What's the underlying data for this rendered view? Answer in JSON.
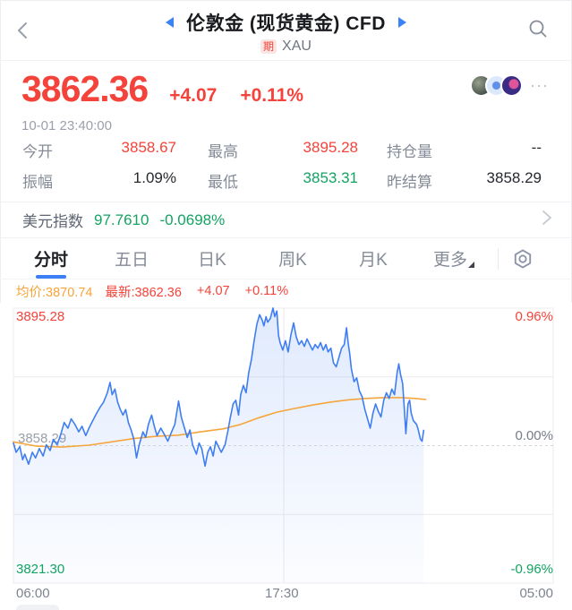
{
  "header": {
    "title": "伦敦金 (现货黄金) CFD",
    "badge": "期",
    "symbol": "XAU",
    "icons": {
      "back": "chevron-left-icon",
      "prev": "triangle-left-icon",
      "next": "triangle-right-icon",
      "search": "magnifier-icon"
    }
  },
  "quote": {
    "price": "3862.36",
    "change": "+4.07",
    "change_pct": "+0.11%",
    "timestamp": "10-01 23:40:00",
    "more_icon": "···"
  },
  "stats": {
    "rows": [
      [
        {
          "label": "今开",
          "value": "3858.67"
        },
        {
          "label": "最高",
          "value": "3895.28"
        },
        {
          "label": "持仓量",
          "value": "--"
        }
      ],
      [
        {
          "label": "振幅",
          "value": "1.09%"
        },
        {
          "label": "最低",
          "value": "3853.31"
        },
        {
          "label": "昨结算",
          "value": "3858.29"
        }
      ]
    ]
  },
  "usd_index": {
    "label": "美元指数",
    "value": "97.7610",
    "change": "-0.0698%"
  },
  "tabs": {
    "items": [
      "分时",
      "五日",
      "日K",
      "周K",
      "月K",
      "更多"
    ],
    "active_index": 0,
    "settings_icon": "hex-nut-gear-icon"
  },
  "legend": {
    "avg": "均价:3870.74",
    "latest": "最新:3862.36",
    "change": "+4.07",
    "change_pct": "+0.11%"
  },
  "chart_data": {
    "type": "line",
    "title": "分时 (minute) chart, London Gold spot CFD",
    "ylim": [
      3821.3,
      3895.28
    ],
    "baseline": 3858.29,
    "y_axis": {
      "top": {
        "price": "3895.28",
        "pct": "0.96%"
      },
      "mid": {
        "price": "3858.29",
        "pct": "0.00%"
      },
      "bottom": {
        "price": "3821.30",
        "pct": "-0.96%"
      }
    },
    "x_ticks": [
      "06:00",
      "17:30",
      "05:00"
    ],
    "x_gridline_frac": 0.501,
    "session_end_frac": 0.76,
    "grid": true,
    "colors": {
      "price_line": "#3f7ef2",
      "avg_line": "#f6a53c",
      "fill_top": "rgba(63,126,242,0.16)",
      "fill_bottom": "rgba(63,126,242,0.02)"
    },
    "series": [
      {
        "name": "price",
        "points": [
          [
            0.0,
            3859.0
          ],
          [
            0.005,
            3856.5
          ],
          [
            0.012,
            3858.0
          ],
          [
            0.017,
            3854.5
          ],
          [
            0.021,
            3856.0
          ],
          [
            0.028,
            3853.3
          ],
          [
            0.035,
            3856.5
          ],
          [
            0.041,
            3855.0
          ],
          [
            0.048,
            3857.5
          ],
          [
            0.055,
            3855.5
          ],
          [
            0.061,
            3858.5
          ],
          [
            0.068,
            3857.0
          ],
          [
            0.074,
            3860.0
          ],
          [
            0.081,
            3858.5
          ],
          [
            0.088,
            3861.5
          ],
          [
            0.094,
            3864.5
          ],
          [
            0.101,
            3863.0
          ],
          [
            0.107,
            3865.5
          ],
          [
            0.114,
            3864.0
          ],
          [
            0.121,
            3862.0
          ],
          [
            0.127,
            3863.5
          ],
          [
            0.134,
            3861.0
          ],
          [
            0.14,
            3863.0
          ],
          [
            0.147,
            3865.0
          ],
          [
            0.154,
            3867.0
          ],
          [
            0.16,
            3868.5
          ],
          [
            0.167,
            3870.0
          ],
          [
            0.174,
            3872.5
          ],
          [
            0.179,
            3875.3
          ],
          [
            0.183,
            3872.0
          ],
          [
            0.188,
            3873.5
          ],
          [
            0.193,
            3870.0
          ],
          [
            0.198,
            3868.0
          ],
          [
            0.203,
            3866.5
          ],
          [
            0.208,
            3868.0
          ],
          [
            0.213,
            3864.5
          ],
          [
            0.218,
            3862.5
          ],
          [
            0.223,
            3860.0
          ],
          [
            0.228,
            3855.0
          ],
          [
            0.233,
            3858.5
          ],
          [
            0.24,
            3862.0
          ],
          [
            0.245,
            3860.5
          ],
          [
            0.25,
            3864.0
          ],
          [
            0.256,
            3866.5
          ],
          [
            0.261,
            3863.5
          ],
          [
            0.266,
            3861.0
          ],
          [
            0.273,
            3863.0
          ],
          [
            0.279,
            3861.5
          ],
          [
            0.286,
            3859.5
          ],
          [
            0.293,
            3862.0
          ],
          [
            0.299,
            3864.0
          ],
          [
            0.306,
            3870.3
          ],
          [
            0.311,
            3866.0
          ],
          [
            0.316,
            3863.5
          ],
          [
            0.322,
            3860.5
          ],
          [
            0.327,
            3862.5
          ],
          [
            0.332,
            3858.5
          ],
          [
            0.339,
            3856.0
          ],
          [
            0.344,
            3859.0
          ],
          [
            0.349,
            3857.5
          ],
          [
            0.355,
            3852.8
          ],
          [
            0.36,
            3856.5
          ],
          [
            0.365,
            3858.0
          ],
          [
            0.37,
            3855.5
          ],
          [
            0.375,
            3859.5
          ],
          [
            0.38,
            3858.0
          ],
          [
            0.385,
            3856.5
          ],
          [
            0.392,
            3858.5
          ],
          [
            0.397,
            3862.0
          ],
          [
            0.402,
            3866.0
          ],
          [
            0.407,
            3869.5
          ],
          [
            0.412,
            3870.5
          ],
          [
            0.417,
            3866.5
          ],
          [
            0.421,
            3872.0
          ],
          [
            0.426,
            3874.5
          ],
          [
            0.431,
            3872.5
          ],
          [
            0.436,
            3878.0
          ],
          [
            0.441,
            3881.5
          ],
          [
            0.446,
            3886.5
          ],
          [
            0.451,
            3891.0
          ],
          [
            0.456,
            3893.5
          ],
          [
            0.461,
            3892.0
          ],
          [
            0.464,
            3890.5
          ],
          [
            0.468,
            3893.0
          ],
          [
            0.471,
            3891.5
          ],
          [
            0.476,
            3892.5
          ],
          [
            0.481,
            3895.3
          ],
          [
            0.484,
            3893.0
          ],
          [
            0.488,
            3894.5
          ],
          [
            0.491,
            3888.0
          ],
          [
            0.494,
            3886.0
          ],
          [
            0.499,
            3884.0
          ],
          [
            0.504,
            3886.5
          ],
          [
            0.509,
            3883.5
          ],
          [
            0.514,
            3888.0
          ],
          [
            0.519,
            3891.3
          ],
          [
            0.524,
            3887.5
          ],
          [
            0.529,
            3885.5
          ],
          [
            0.534,
            3886.5
          ],
          [
            0.539,
            3885.0
          ],
          [
            0.544,
            3887.0
          ],
          [
            0.549,
            3885.5
          ],
          [
            0.554,
            3884.0
          ],
          [
            0.559,
            3885.5
          ],
          [
            0.564,
            3884.5
          ],
          [
            0.569,
            3886.0
          ],
          [
            0.574,
            3884.0
          ],
          [
            0.579,
            3885.5
          ],
          [
            0.583,
            3883.5
          ],
          [
            0.588,
            3884.5
          ],
          [
            0.593,
            3880.5
          ],
          [
            0.598,
            3879.5
          ],
          [
            0.603,
            3882.0
          ],
          [
            0.608,
            3884.5
          ],
          [
            0.613,
            3885.5
          ],
          [
            0.617,
            3890.0
          ],
          [
            0.62,
            3886.0
          ],
          [
            0.623,
            3883.0
          ],
          [
            0.626,
            3879.0
          ],
          [
            0.631,
            3875.5
          ],
          [
            0.636,
            3876.5
          ],
          [
            0.641,
            3873.0
          ],
          [
            0.646,
            3871.5
          ],
          [
            0.651,
            3868.0
          ],
          [
            0.656,
            3865.5
          ],
          [
            0.661,
            3863.0
          ],
          [
            0.666,
            3867.0
          ],
          [
            0.671,
            3869.5
          ],
          [
            0.676,
            3867.5
          ],
          [
            0.681,
            3866.0
          ],
          [
            0.686,
            3870.5
          ],
          [
            0.691,
            3872.5
          ],
          [
            0.696,
            3871.0
          ],
          [
            0.701,
            3873.5
          ],
          [
            0.706,
            3872.0
          ],
          [
            0.711,
            3878.0
          ],
          [
            0.714,
            3880.3
          ],
          [
            0.717,
            3877.5
          ],
          [
            0.721,
            3875.0
          ],
          [
            0.724,
            3868.5
          ],
          [
            0.727,
            3861.5
          ],
          [
            0.731,
            3869.5
          ],
          [
            0.734,
            3870.5
          ],
          [
            0.737,
            3867.0
          ],
          [
            0.741,
            3865.0
          ],
          [
            0.744,
            3864.5
          ],
          [
            0.747,
            3864.0
          ],
          [
            0.75,
            3862.5
          ],
          [
            0.754,
            3860.0
          ],
          [
            0.757,
            3859.5
          ],
          [
            0.76,
            3862.4
          ]
        ]
      },
      {
        "name": "avg",
        "points": [
          [
            0.0,
            3859.3
          ],
          [
            0.041,
            3858.2
          ],
          [
            0.091,
            3857.9
          ],
          [
            0.14,
            3858.4
          ],
          [
            0.182,
            3859.3
          ],
          [
            0.223,
            3860.2
          ],
          [
            0.264,
            3860.8
          ],
          [
            0.306,
            3861.1
          ],
          [
            0.347,
            3862.0
          ],
          [
            0.388,
            3862.8
          ],
          [
            0.421,
            3864.0
          ],
          [
            0.455,
            3865.8
          ],
          [
            0.488,
            3867.3
          ],
          [
            0.521,
            3868.3
          ],
          [
            0.554,
            3869.2
          ],
          [
            0.587,
            3870.0
          ],
          [
            0.62,
            3870.6
          ],
          [
            0.653,
            3871.0
          ],
          [
            0.686,
            3871.2
          ],
          [
            0.719,
            3871.2
          ],
          [
            0.744,
            3871.0
          ],
          [
            0.764,
            3870.7
          ]
        ]
      }
    ]
  }
}
